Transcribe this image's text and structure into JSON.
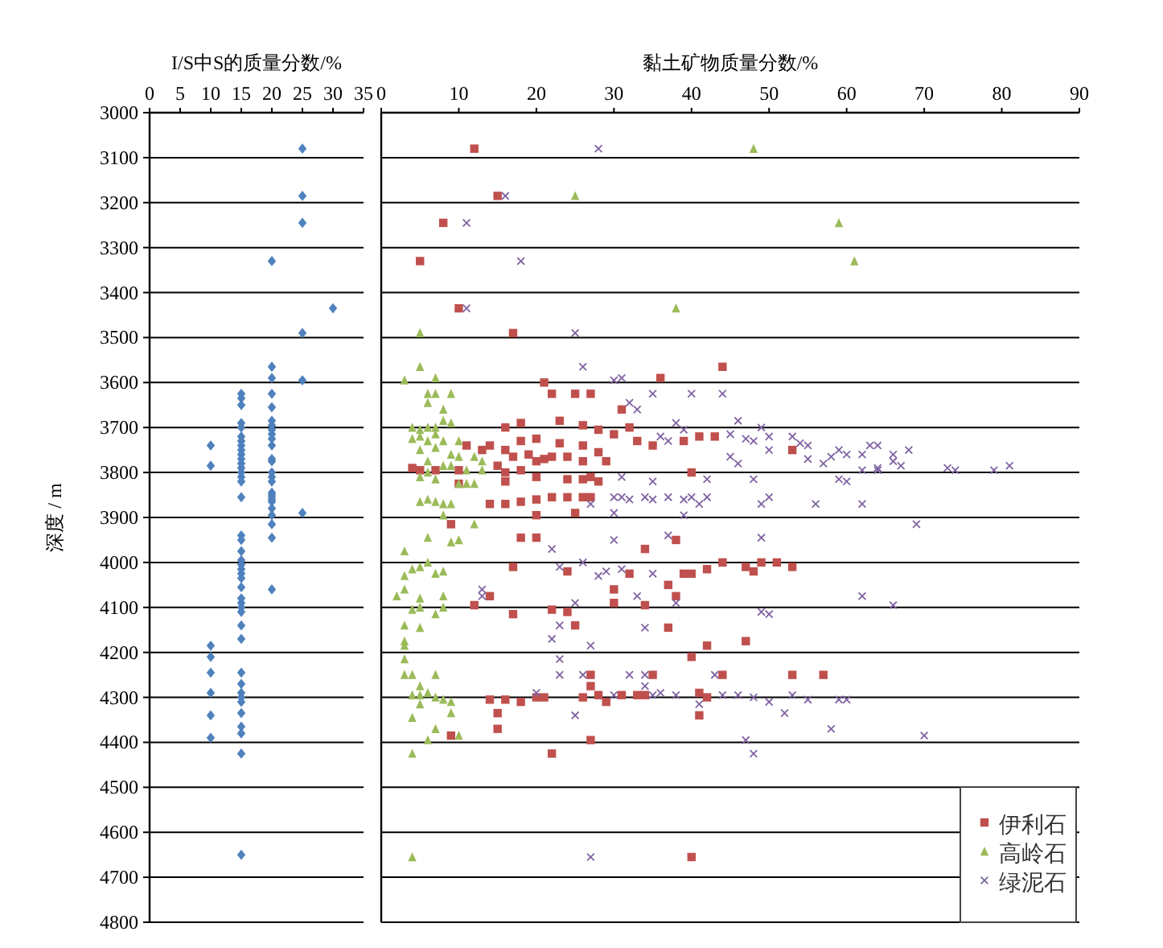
{
  "chart_data": [
    {
      "type": "scatter",
      "xlabel": "I/S中S的质量分数/%",
      "ylabel": "深度 / m",
      "xlim": [
        0,
        35
      ],
      "xticks": [
        0,
        5,
        10,
        15,
        20,
        25,
        30,
        35
      ],
      "ylim": [
        4800,
        3000
      ],
      "yticks": [
        3000,
        3100,
        3200,
        3300,
        3400,
        3500,
        3600,
        3700,
        3800,
        3900,
        4000,
        4100,
        4200,
        4300,
        4400,
        4500,
        4600,
        4700,
        4800
      ],
      "grid": "y",
      "legend": false,
      "series": [
        {
          "color": "#4f81bd",
          "marker": "diamond",
          "x": [
            25,
            25,
            25,
            20,
            30,
            25,
            25,
            25,
            20,
            20,
            20,
            20,
            20,
            20,
            20,
            20,
            20,
            20,
            20,
            20,
            20,
            20,
            20,
            20,
            20,
            20,
            20,
            20,
            20,
            20,
            20,
            20,
            20,
            15,
            15,
            15,
            15,
            15,
            15,
            15,
            15,
            15,
            15,
            15,
            15,
            15,
            15,
            15,
            15,
            15,
            15,
            15,
            15,
            15,
            15,
            15,
            15,
            15,
            15,
            15,
            15,
            15,
            15,
            15,
            15,
            15,
            15,
            15,
            15,
            15,
            15,
            15,
            15,
            15,
            15,
            10,
            10,
            10,
            10,
            10,
            10,
            10,
            10
          ],
          "values": [
            3080,
            3185,
            3245,
            3330,
            3435,
            3490,
            3595,
            3890,
            3565,
            3590,
            3625,
            3655,
            3685,
            3695,
            3705,
            3715,
            3725,
            3740,
            3770,
            3775,
            3800,
            3810,
            3820,
            3845,
            3850,
            3855,
            3860,
            3865,
            3880,
            3895,
            3915,
            3945,
            4060,
            3625,
            3635,
            3650,
            3690,
            3700,
            3720,
            3730,
            3740,
            3750,
            3760,
            3770,
            3780,
            3790,
            3800,
            3810,
            3820,
            3855,
            3940,
            3950,
            3975,
            3995,
            4005,
            4015,
            4025,
            4035,
            4055,
            4080,
            4090,
            4100,
            4110,
            4140,
            4170,
            4245,
            4270,
            4290,
            4300,
            4310,
            4335,
            4365,
            4380,
            4425,
            4650,
            3740,
            3785,
            4185,
            4210,
            4245,
            4290,
            4340,
            4390
          ]
        }
      ]
    },
    {
      "type": "scatter",
      "xlabel": "黏土矿物质量分数/%",
      "xlim": [
        0,
        90
      ],
      "xticks": [
        0,
        10,
        20,
        30,
        40,
        50,
        60,
        70,
        80,
        90
      ],
      "ylim": [
        4800,
        3000
      ],
      "yticks": [
        3000,
        3100,
        3200,
        3300,
        3400,
        3500,
        3600,
        3700,
        3800,
        3900,
        4000,
        4100,
        4200,
        4300,
        4400,
        4500,
        4600,
        4700,
        4800
      ],
      "grid": "y",
      "tick_labels": "x",
      "legend": "bottom right",
      "series": [
        {
          "name": "伊利石",
          "color": "#c0504d",
          "marker": "square",
          "x": [
            12,
            15,
            8,
            5,
            10,
            17,
            44,
            36,
            21,
            22,
            25,
            27,
            31,
            16,
            18,
            23,
            26,
            28,
            30,
            32,
            33,
            35,
            39,
            41,
            43,
            53,
            18,
            20,
            23,
            26,
            11,
            13,
            14,
            16,
            17,
            19,
            20,
            21,
            22,
            24,
            26,
            28,
            29,
            4,
            5,
            7,
            10,
            15,
            16,
            18,
            16,
            20,
            24,
            26,
            27,
            28,
            10,
            40,
            14,
            16,
            18,
            20,
            22,
            24,
            26,
            27,
            20,
            25,
            9,
            18,
            20,
            38,
            34,
            17,
            24,
            32,
            39,
            40,
            42,
            44,
            47,
            48,
            49,
            51,
            53,
            14,
            12,
            17,
            22,
            24,
            25,
            30,
            30,
            34,
            37,
            38,
            37,
            40,
            42,
            47,
            27,
            35,
            44,
            53,
            57,
            27,
            14,
            16,
            18,
            20,
            21,
            26,
            28,
            29,
            31,
            33,
            34,
            41,
            42,
            15,
            41,
            15,
            9,
            27,
            22,
            40
          ],
          "values": [
            3080,
            3185,
            3245,
            3330,
            3435,
            3490,
            3565,
            3590,
            3600,
            3625,
            3625,
            3625,
            3660,
            3700,
            3690,
            3685,
            3695,
            3705,
            3715,
            3700,
            3730,
            3740,
            3730,
            3720,
            3720,
            3750,
            3730,
            3725,
            3735,
            3740,
            3740,
            3750,
            3740,
            3750,
            3765,
            3760,
            3775,
            3770,
            3765,
            3765,
            3775,
            3755,
            3775,
            3790,
            3795,
            3795,
            3795,
            3785,
            3800,
            3795,
            3820,
            3810,
            3815,
            3815,
            3810,
            3820,
            3825,
            3800,
            3870,
            3870,
            3865,
            3860,
            3855,
            3855,
            3855,
            3855,
            3895,
            3890,
            3915,
            3945,
            3945,
            3950,
            3970,
            4010,
            4020,
            4025,
            4025,
            4025,
            4015,
            4000,
            4010,
            4020,
            4000,
            4000,
            4010,
            4075,
            4095,
            4115,
            4105,
            4110,
            4140,
            4060,
            4090,
            4095,
            4145,
            4075,
            4050,
            4210,
            4185,
            4175,
            4250,
            4250,
            4250,
            4250,
            4250,
            4275,
            4305,
            4305,
            4310,
            4300,
            4300,
            4300,
            4295,
            4310,
            4295,
            4295,
            4295,
            4290,
            4300,
            4335,
            4340,
            4370,
            4385,
            4395,
            4425,
            4655
          ]
        },
        {
          "name": "高岭石",
          "color": "#9bbb59",
          "marker": "triangle",
          "x": [
            48,
            25,
            59,
            61,
            38,
            5,
            5,
            3,
            7,
            6,
            7,
            9,
            6,
            8,
            8,
            9,
            4,
            5,
            6,
            7,
            4,
            5,
            6,
            7,
            8,
            10,
            5,
            7,
            9,
            10,
            12,
            13,
            6,
            8,
            9,
            11,
            13,
            6,
            5,
            7,
            10,
            11,
            12,
            5,
            6,
            7,
            8,
            9,
            8,
            12,
            6,
            9,
            10,
            3,
            4,
            5,
            6,
            7,
            8,
            3,
            2,
            3,
            5,
            5,
            7,
            4,
            8,
            8,
            3,
            5,
            3,
            3,
            3,
            3,
            4,
            7,
            5,
            4,
            5,
            6,
            7,
            8,
            9,
            5,
            4,
            9,
            7,
            10,
            6,
            4,
            4
          ],
          "values": [
            3080,
            3185,
            3245,
            3330,
            3435,
            3490,
            3565,
            3595,
            3590,
            3625,
            3625,
            3625,
            3645,
            3660,
            3685,
            3690,
            3700,
            3705,
            3700,
            3700,
            3725,
            3720,
            3730,
            3715,
            3730,
            3730,
            3750,
            3745,
            3760,
            3765,
            3765,
            3775,
            3775,
            3785,
            3785,
            3795,
            3795,
            3800,
            3810,
            3815,
            3825,
            3825,
            3825,
            3865,
            3860,
            3865,
            3870,
            3870,
            3895,
            3915,
            3945,
            3955,
            3950,
            3975,
            4015,
            4010,
            4000,
            4025,
            4020,
            4030,
            4075,
            4060,
            4080,
            4100,
            4115,
            4105,
            4075,
            4100,
            4140,
            4145,
            4175,
            4185,
            4215,
            4250,
            4250,
            4250,
            4275,
            4295,
            4295,
            4290,
            4300,
            4305,
            4310,
            4315,
            4345,
            4335,
            4370,
            4385,
            4395,
            4425,
            4655
          ]
        },
        {
          "name": "绿泥石",
          "color": "#8064a2",
          "marker": "cross",
          "x": [
            28,
            16,
            11,
            18,
            11,
            25,
            26,
            30,
            31,
            35,
            40,
            44,
            32,
            33,
            38,
            39,
            36,
            37,
            46,
            49,
            45,
            47,
            48,
            50,
            53,
            54,
            55,
            50,
            45,
            46,
            55,
            57,
            58,
            59,
            60,
            62,
            63,
            64,
            66,
            66,
            68,
            67,
            62,
            64,
            64,
            73,
            74,
            79,
            81,
            59,
            60,
            48,
            31,
            35,
            42,
            30,
            31,
            32,
            34,
            35,
            37,
            39,
            40,
            41,
            42,
            49,
            50,
            56,
            62,
            27,
            30,
            39,
            69,
            22,
            37,
            49,
            30,
            23,
            26,
            28,
            29,
            31,
            35,
            13,
            13,
            25,
            33,
            38,
            49,
            50,
            62,
            66,
            23,
            34,
            22,
            27,
            23,
            23,
            26,
            32,
            34,
            34,
            43,
            20,
            30,
            35,
            36,
            38,
            44,
            46,
            48,
            50,
            53,
            55,
            59,
            60,
            41,
            25,
            52,
            58,
            70,
            47,
            48,
            27
          ],
          "values": [
            3080,
            3185,
            3245,
            3330,
            3435,
            3490,
            3565,
            3595,
            3590,
            3625,
            3625,
            3625,
            3645,
            3660,
            3690,
            3705,
            3720,
            3730,
            3685,
            3700,
            3715,
            3725,
            3730,
            3720,
            3720,
            3735,
            3740,
            3750,
            3765,
            3780,
            3770,
            3780,
            3765,
            3750,
            3760,
            3760,
            3740,
            3740,
            3760,
            3775,
            3750,
            3785,
            3795,
            3795,
            3790,
            3790,
            3795,
            3795,
            3785,
            3815,
            3820,
            3815,
            3810,
            3820,
            3815,
            3855,
            3855,
            3860,
            3855,
            3860,
            3855,
            3860,
            3855,
            3870,
            3855,
            3870,
            3855,
            3870,
            3870,
            3870,
            3890,
            3895,
            3915,
            3970,
            3940,
            3945,
            3950,
            4010,
            4000,
            4030,
            4020,
            4015,
            4025,
            4060,
            4075,
            4090,
            4075,
            4090,
            4110,
            4115,
            4075,
            4095,
            4140,
            4145,
            4170,
            4185,
            4215,
            4250,
            4250,
            4250,
            4250,
            4275,
            4250,
            4290,
            4295,
            4295,
            4290,
            4295,
            4295,
            4295,
            4300,
            4310,
            4295,
            4305,
            4305,
            4305,
            4315,
            4340,
            4335,
            4370,
            4385,
            4395,
            4425,
            4655
          ]
        }
      ]
    }
  ]
}
